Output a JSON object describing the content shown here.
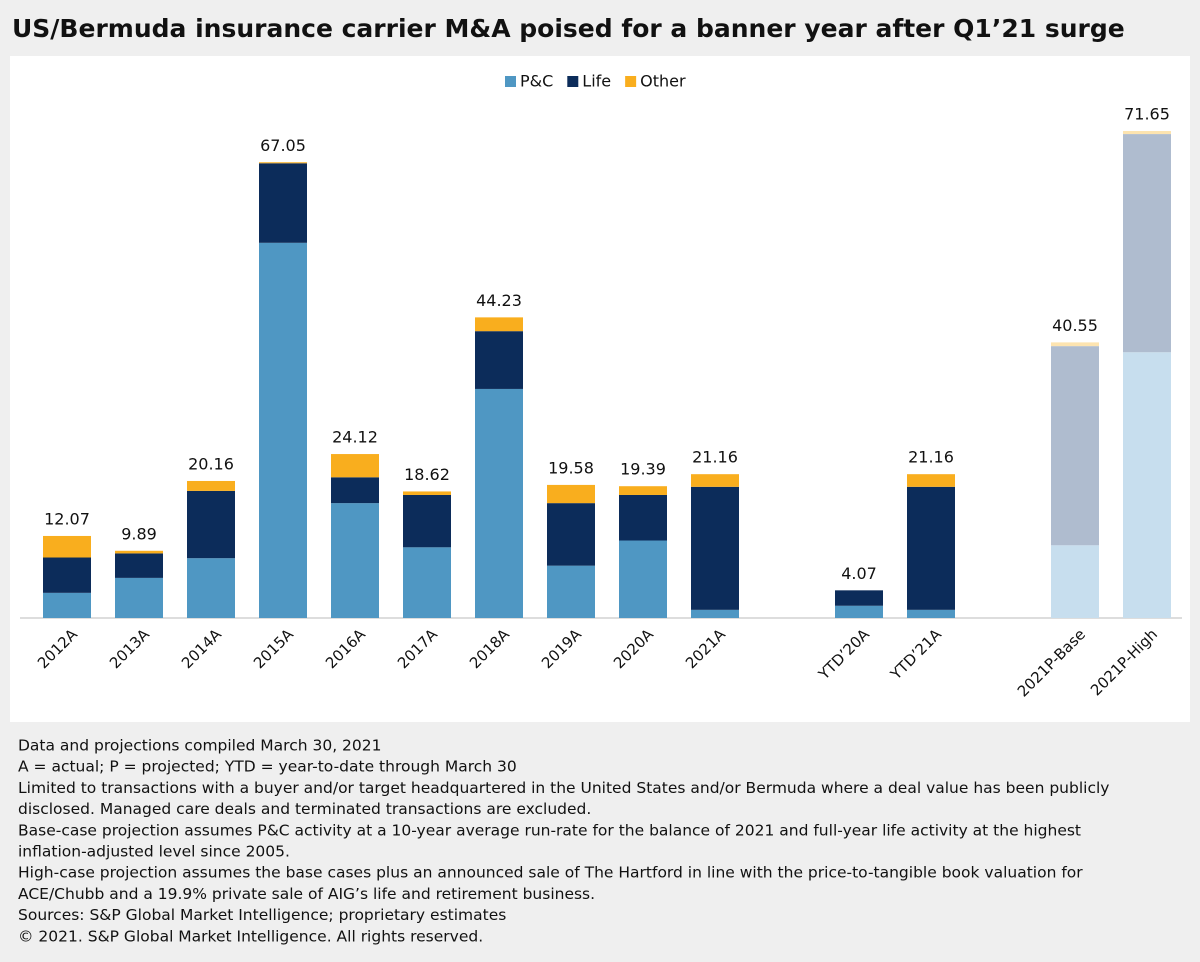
{
  "chart_data": {
    "type": "stacked-bar",
    "title": "US/Bermuda insurance carrier M&A poised for a banner year after Q1’21 surge",
    "categories": [
      "2012A",
      "2013A",
      "2014A",
      "2015A",
      "2016A",
      "2017A",
      "2018A",
      "2019A",
      "2020A",
      "2021A",
      null,
      "YTD’20A",
      "YTD’21A",
      null,
      "2021P-Base",
      "2021P-High"
    ],
    "series": [
      {
        "name": "P&C",
        "color": "#4f97c3",
        "values": [
          3.7,
          5.9,
          8.8,
          55.2,
          16.9,
          10.4,
          33.7,
          7.7,
          11.4,
          1.2,
          null,
          1.8,
          1.2,
          null,
          10.7,
          39.1
        ],
        "colors": [
          "#4f97c3",
          "#4f97c3",
          "#4f97c3",
          "#4f97c3",
          "#4f97c3",
          "#4f97c3",
          "#4f97c3",
          "#4f97c3",
          "#4f97c3",
          "#4f97c3",
          null,
          "#4f97c3",
          "#4f97c3",
          null,
          "#c7deee",
          "#c7deee"
        ]
      },
      {
        "name": "Life",
        "color": "#0c2c5a",
        "values": [
          5.2,
          3.6,
          9.9,
          11.7,
          3.8,
          7.7,
          8.5,
          9.2,
          6.7,
          18.1,
          null,
          2.27,
          18.1,
          null,
          29.3,
          32.1
        ],
        "colors": [
          "#0c2c5a",
          "#0c2c5a",
          "#0c2c5a",
          "#0c2c5a",
          "#0c2c5a",
          "#0c2c5a",
          "#0c2c5a",
          "#0c2c5a",
          "#0c2c5a",
          "#0c2c5a",
          null,
          "#0c2c5a",
          "#0c2c5a",
          null,
          "#afbccf",
          "#afbccf"
        ]
      },
      {
        "name": "Other",
        "color": "#f9ae1e",
        "values": [
          3.17,
          0.39,
          1.46,
          0.15,
          3.42,
          0.52,
          2.03,
          2.68,
          1.29,
          1.86,
          null,
          0,
          1.86,
          null,
          0.55,
          0.45
        ],
        "colors": [
          "#f9ae1e",
          "#f9ae1e",
          "#f9ae1e",
          "#f9ae1e",
          "#f9ae1e",
          "#f9ae1e",
          "#f9ae1e",
          "#f9ae1e",
          "#f9ae1e",
          "#f9ae1e",
          null,
          "#f9ae1e",
          "#f9ae1e",
          null,
          "#fde4b0",
          "#fde4b0"
        ]
      }
    ],
    "totals": [
      12.07,
      9.89,
      20.16,
      67.05,
      24.12,
      18.62,
      44.23,
      19.58,
      19.39,
      21.16,
      null,
      4.07,
      21.16,
      null,
      40.55,
      71.65
    ],
    "notes": [
      "Data and projections compiled March 30, 2021",
      "A = actual; P = projected; YTD = year-to-date through March 30",
      "Limited to transactions with a buyer and/or target headquartered in the United States and/or Bermuda where a deal value has been publicly",
      "disclosed. Managed care deals and terminated transactions are excluded.",
      "Base-case projection assumes P&C activity at a 10-year average run-rate for the balance of 2021 and full-year life activity at the highest",
      "inflation-adjusted level since 2005.",
      "High-case projection assumes the base cases plus an announced sale of The Hartford in line with the price-to-tangible book valuation for",
      "ACE/Chubb and a 19.9% private sale of AIG’s life and retirement business.",
      "Sources: S&P Global Market Intelligence; proprietary estimates",
      "© 2021. S&P Global Market Intelligence. All rights reserved."
    ]
  }
}
